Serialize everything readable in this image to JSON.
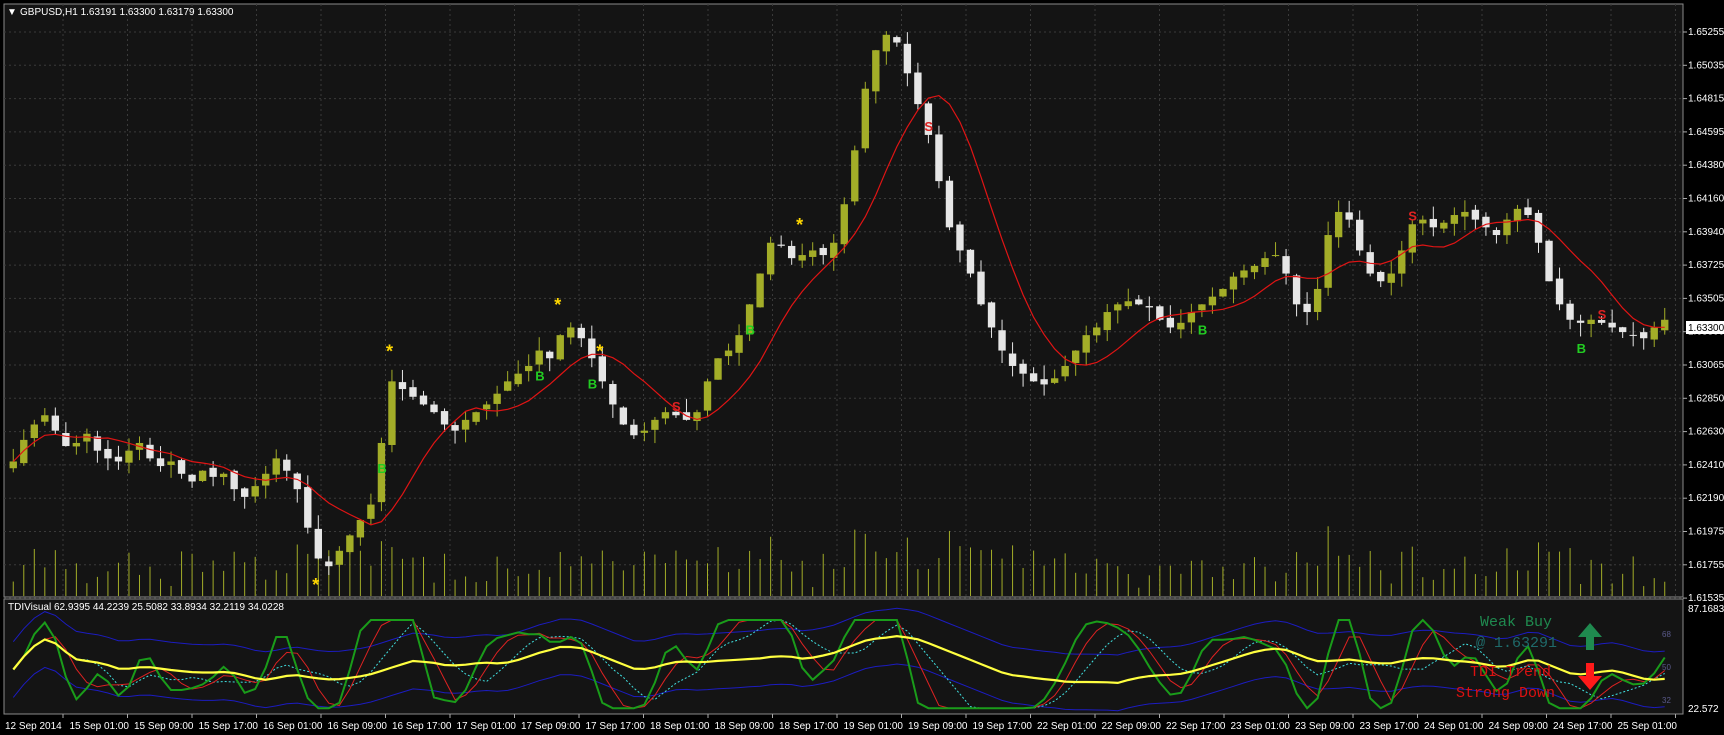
{
  "main_header": "GBPUSD,H1  1.63191 1.63300 1.63179 1.63300",
  "sub_header": "TDIVisual 62.9395 44.2239 25.5082 33.8934 32.2119 34.0228",
  "current_price_label": "1.63300",
  "tdi_panel": {
    "weak_buy": "Weak Buy",
    "buy_price": "@ 1.63291",
    "trend_line1": "TDI Trend",
    "trend_line2": "Strong Down",
    "level_high": "68",
    "level_mid": "50",
    "level_low": "32"
  },
  "colors": {
    "background": "#000000",
    "plot_bg": "#141414",
    "grid": "#3a3a3a",
    "bull_candle": "#a3ad28",
    "bear_candle": "#e6e6e6",
    "ma_line": "#e01414",
    "volume": "#a3ad28",
    "buy_signal": "#22cc22",
    "sell_signal": "#dd2222",
    "star": "#ffd700",
    "tdi_yellow": "#ffff40",
    "tdi_green": "#1a9c1a",
    "tdi_red": "#dd2222",
    "tdi_band": "#1c1cc0",
    "tdi_signal": "#40e0e0",
    "weak_buy_text": "#1f8a4f",
    "trend_text": "#dd1111"
  },
  "chart_data": [
    {
      "type": "candlestick",
      "symbol": "GBPUSD",
      "timeframe": "H1",
      "ohlc_last": {
        "open": 1.63191,
        "high": 1.633,
        "low": 1.63179,
        "close": 1.633
      },
      "ylim": [
        1.615,
        1.6535
      ],
      "y_tick_labels": [
        "1.65255",
        "1.65035",
        "1.64815",
        "1.64595",
        "1.64380",
        "1.64160",
        "1.63940",
        "1.63725",
        "1.63505",
        "1.63300",
        "1.63065",
        "1.62850",
        "1.62630",
        "1.62410",
        "1.62190",
        "1.61975",
        "1.61755",
        "1.61535"
      ],
      "x_tick_labels": [
        "12 Sep 2014",
        "15 Sep 01:00",
        "15 Sep 09:00",
        "15 Sep 17:00",
        "16 Sep 01:00",
        "16 Sep 09:00",
        "16 Sep 17:00",
        "17 Sep 01:00",
        "17 Sep 09:00",
        "17 Sep 17:00",
        "18 Sep 01:00",
        "18 Sep 09:00",
        "18 Sep 17:00",
        "19 Sep 01:00",
        "19 Sep 09:00",
        "19 Sep 17:00",
        "22 Sep 01:00",
        "22 Sep 09:00",
        "22 Sep 17:00",
        "23 Sep 01:00",
        "23 Sep 09:00",
        "23 Sep 17:00",
        "24 Sep 01:00",
        "24 Sep 09:00",
        "24 Sep 17:00",
        "25 Sep 01:00"
      ],
      "close_path": [
        1.6238,
        1.6252,
        1.6262,
        1.6268,
        1.6258,
        1.6248,
        1.625,
        1.6256,
        1.6245,
        1.624,
        1.6238,
        1.6245,
        1.625,
        1.624,
        1.6235,
        1.6238,
        1.623,
        1.6225,
        1.6232,
        1.6228,
        1.623,
        1.622,
        1.6215,
        1.6222,
        1.623,
        1.624,
        1.6232,
        1.622,
        1.6195,
        1.6175,
        1.617,
        1.618,
        1.619,
        1.62,
        1.621,
        1.625,
        1.629,
        1.6285,
        1.628,
        1.6275,
        1.627,
        1.6262,
        1.6258,
        1.6265,
        1.627,
        1.6275,
        1.6282,
        1.629,
        1.6295,
        1.63,
        1.631,
        1.6305,
        1.632,
        1.6325,
        1.6318,
        1.6305,
        1.629,
        1.6275,
        1.6262,
        1.6255,
        1.6258,
        1.6265,
        1.627,
        1.6268,
        1.6265,
        1.627,
        1.629,
        1.6305,
        1.631,
        1.632,
        1.634,
        1.636,
        1.638,
        1.6378,
        1.637,
        1.6372,
        1.6375,
        1.6372,
        1.638,
        1.6405,
        1.644,
        1.648,
        1.6505,
        1.6515,
        1.651,
        1.649,
        1.647,
        1.645,
        1.642,
        1.639,
        1.6375,
        1.636,
        1.634,
        1.6325,
        1.631,
        1.63,
        1.6295,
        1.629,
        1.6288,
        1.6292,
        1.63,
        1.631,
        1.632,
        1.6325,
        1.6335,
        1.634,
        1.6342,
        1.634,
        1.6338,
        1.633,
        1.6325,
        1.6328,
        1.6335,
        1.634,
        1.6345,
        1.635,
        1.6358,
        1.6362,
        1.6365,
        1.637,
        1.6372,
        1.636,
        1.634,
        1.6335,
        1.635,
        1.6385,
        1.64,
        1.6395,
        1.6375,
        1.636,
        1.6355,
        1.636,
        1.6375,
        1.6392,
        1.6395,
        1.639,
        1.6393,
        1.6398,
        1.64,
        1.6395,
        1.639,
        1.6385,
        1.6395,
        1.6402,
        1.6398,
        1.638,
        1.6355,
        1.634,
        1.633,
        1.6328,
        1.633,
        1.6328,
        1.6325,
        1.6322,
        1.632,
        1.6318,
        1.6325,
        1.633
      ],
      "signals": [
        {
          "time": "16 Sep 13:00",
          "label": "B"
        },
        {
          "time": "17 Sep 04:00",
          "label": "B"
        },
        {
          "time": "17 Sep 12:00",
          "label": "B"
        },
        {
          "time": "18 Sep 06:00",
          "label": "B"
        },
        {
          "time": "22 Sep 09:00",
          "label": "B"
        },
        {
          "time": "24 Sep 06:00",
          "label": "B"
        },
        {
          "time": "17 Sep 18:00",
          "label": "S"
        },
        {
          "time": "19 Sep 10:00",
          "label": "S"
        },
        {
          "time": "23 Sep 15:00",
          "label": "S"
        },
        {
          "time": "24 Sep 10:00",
          "label": "S"
        }
      ]
    },
    {
      "type": "line",
      "indicator": "TDIVisual",
      "values": [
        62.9395,
        44.2239,
        25.5082,
        33.8934,
        32.2119,
        34.0228
      ],
      "ylim": [
        22.572,
        87.1683
      ],
      "y_tick_labels": [
        "87.1683",
        "22.572"
      ],
      "levels": [
        68,
        50,
        32
      ]
    }
  ]
}
